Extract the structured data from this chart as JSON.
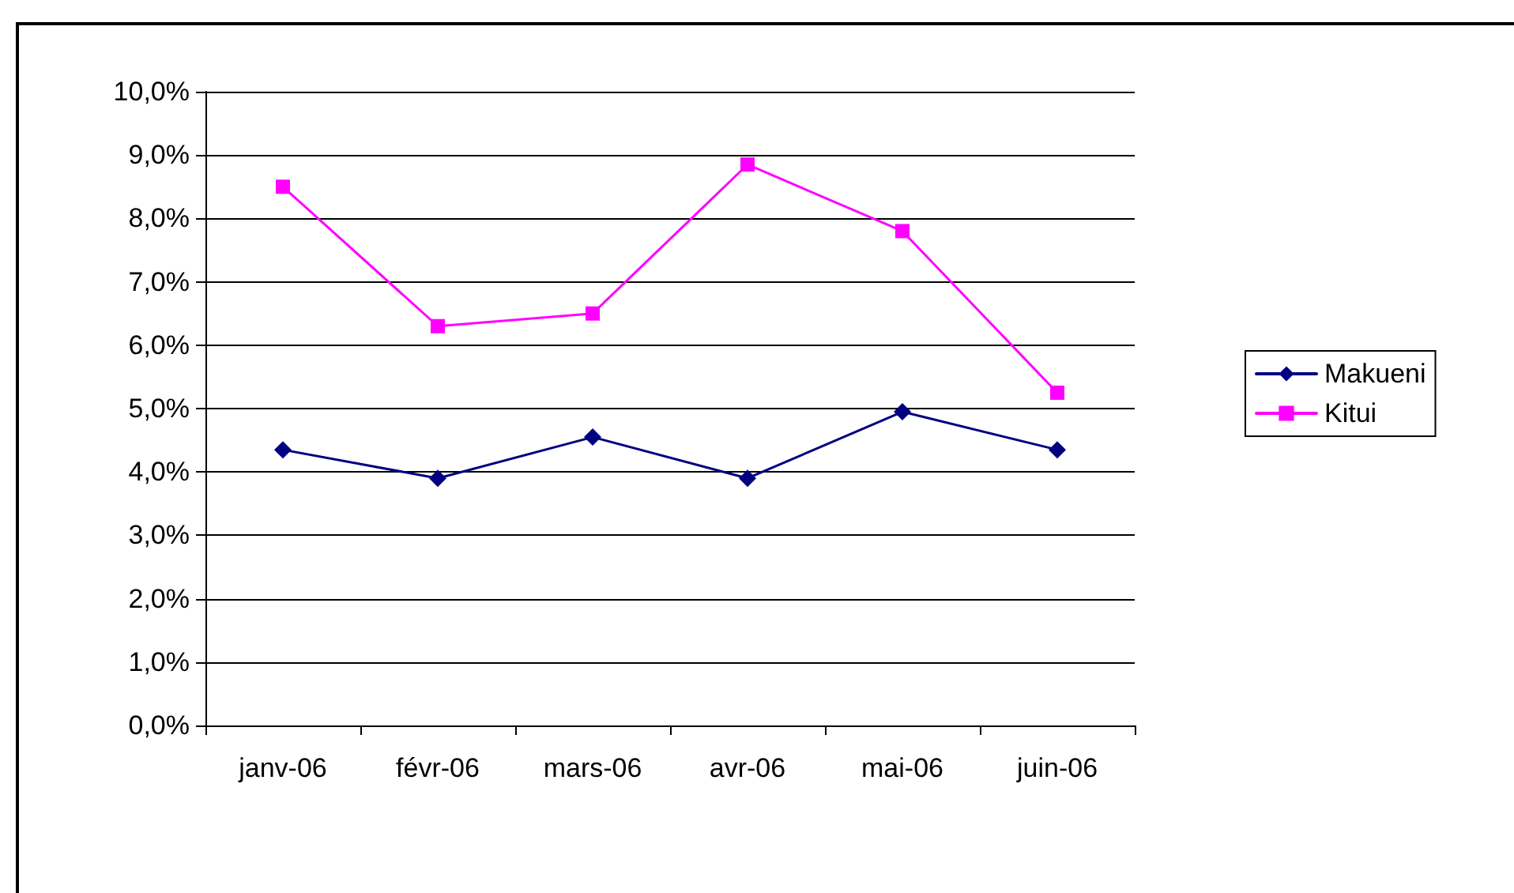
{
  "chart_data": {
    "type": "line",
    "categories": [
      "janv-06",
      "févr-06",
      "mars-06",
      "avr-06",
      "mai-06",
      "juin-06"
    ],
    "series": [
      {
        "name": "Makueni",
        "color": "#000080",
        "marker": "diamond",
        "values": [
          4.35,
          3.9,
          4.55,
          3.9,
          4.95,
          4.35
        ]
      },
      {
        "name": "Kitui",
        "color": "#ff00ff",
        "marker": "square",
        "values": [
          8.5,
          6.3,
          6.5,
          8.85,
          7.8,
          5.25
        ]
      }
    ],
    "ylim": [
      0,
      10
    ],
    "yticks": [
      {
        "value": 0,
        "label": "0,0%"
      },
      {
        "value": 1,
        "label": "1,0%"
      },
      {
        "value": 2,
        "label": "2,0%"
      },
      {
        "value": 3,
        "label": "3,0%"
      },
      {
        "value": 4,
        "label": "4,0%"
      },
      {
        "value": 5,
        "label": "5,0%"
      },
      {
        "value": 6,
        "label": "6,0%"
      },
      {
        "value": 7,
        "label": "7,0%"
      },
      {
        "value": 8,
        "label": "8,0%"
      },
      {
        "value": 9,
        "label": "9,0%"
      },
      {
        "value": 10,
        "label": "10,0%"
      }
    ],
    "grid": "y",
    "legend": "right",
    "line_style": "solid"
  }
}
